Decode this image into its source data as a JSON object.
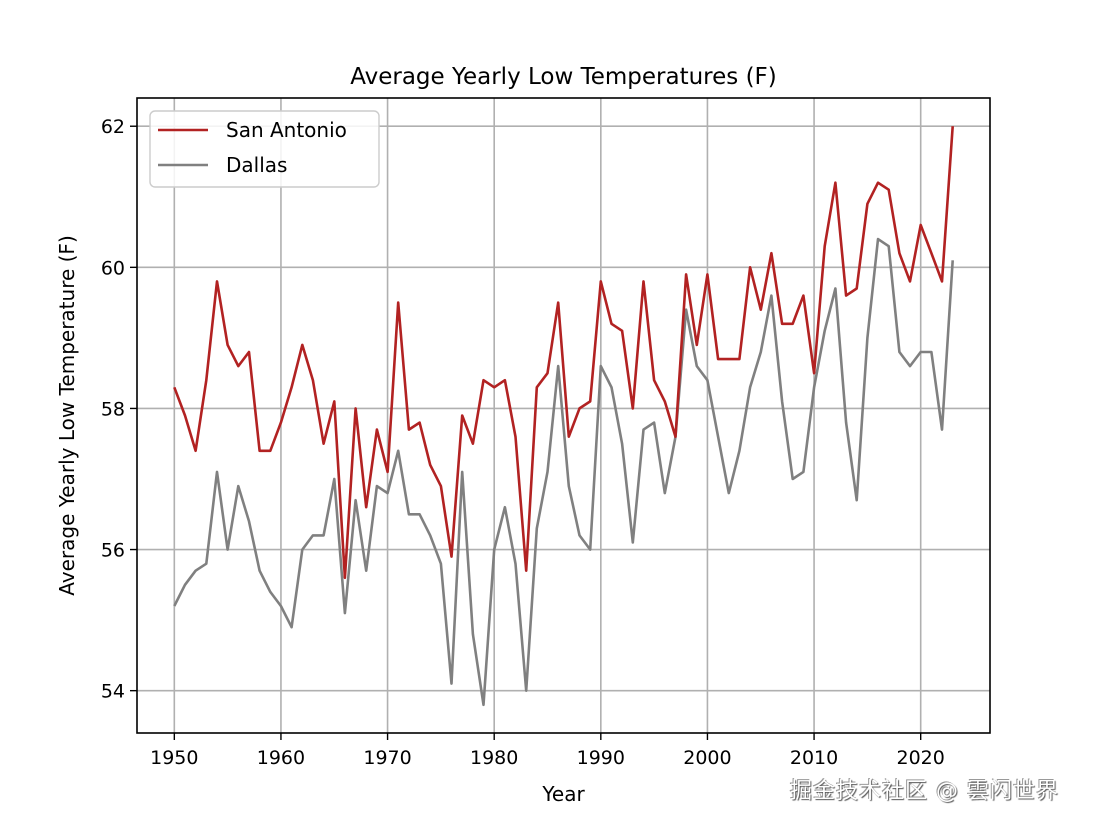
{
  "chart_data": {
    "type": "line",
    "title": "Average Yearly Low Temperatures (F)",
    "xlabel": "Year",
    "ylabel": "Average Yearly Low Temperature (F)",
    "xlim": [
      1946.5,
      2026.5
    ],
    "ylim": [
      53.4,
      62.4
    ],
    "xticks": [
      1950,
      1960,
      1970,
      1980,
      1990,
      2000,
      2010,
      2020
    ],
    "yticks": [
      54,
      56,
      58,
      60,
      62
    ],
    "grid": true,
    "legend_position": "top-left",
    "x": [
      1950,
      1951,
      1952,
      1953,
      1954,
      1955,
      1956,
      1957,
      1958,
      1959,
      1960,
      1961,
      1962,
      1963,
      1964,
      1965,
      1966,
      1967,
      1968,
      1969,
      1970,
      1971,
      1972,
      1973,
      1974,
      1975,
      1976,
      1977,
      1978,
      1979,
      1980,
      1981,
      1982,
      1983,
      1984,
      1985,
      1986,
      1987,
      1988,
      1989,
      1990,
      1991,
      1992,
      1993,
      1994,
      1995,
      1996,
      1997,
      1998,
      1999,
      2000,
      2001,
      2002,
      2003,
      2004,
      2005,
      2006,
      2007,
      2008,
      2009,
      2010,
      2011,
      2012,
      2013,
      2014,
      2015,
      2016,
      2017,
      2018,
      2019,
      2020,
      2021,
      2022,
      2023
    ],
    "series": [
      {
        "name": "San Antonio",
        "color": "#b22222",
        "values": [
          58.3,
          57.9,
          57.4,
          58.4,
          59.8,
          58.9,
          58.6,
          58.8,
          57.4,
          57.4,
          57.8,
          58.3,
          58.9,
          58.4,
          57.5,
          58.1,
          55.6,
          58.0,
          56.6,
          57.7,
          57.1,
          59.5,
          57.7,
          57.8,
          57.2,
          56.9,
          55.9,
          57.9,
          57.5,
          58.4,
          58.3,
          58.4,
          57.6,
          55.7,
          58.3,
          58.5,
          59.5,
          57.6,
          58.0,
          58.1,
          59.8,
          59.2,
          59.1,
          58.0,
          59.8,
          58.4,
          58.1,
          57.6,
          59.9,
          58.9,
          59.9,
          58.7,
          58.7,
          58.7,
          60.0,
          59.4,
          60.2,
          59.2,
          59.2,
          59.6,
          58.5,
          60.3,
          61.2,
          59.6,
          59.7,
          60.9,
          61.2,
          61.1,
          60.2,
          59.8,
          60.6,
          60.2,
          59.8,
          62.0
        ]
      },
      {
        "name": "Dallas",
        "color": "#808080",
        "values": [
          55.2,
          55.5,
          55.7,
          55.8,
          57.1,
          56.0,
          56.9,
          56.4,
          55.7,
          55.4,
          55.2,
          54.9,
          56.0,
          56.2,
          56.2,
          57.0,
          55.1,
          56.7,
          55.7,
          56.9,
          56.8,
          57.4,
          56.5,
          56.5,
          56.2,
          55.8,
          54.1,
          57.1,
          54.8,
          53.8,
          56.0,
          56.6,
          55.8,
          54.0,
          56.3,
          57.1,
          58.6,
          56.9,
          56.2,
          56.0,
          58.6,
          58.3,
          57.5,
          56.1,
          57.7,
          57.8,
          56.8,
          57.6,
          59.4,
          58.6,
          58.4,
          57.6,
          56.8,
          57.4,
          58.3,
          58.8,
          59.6,
          58.1,
          57.0,
          57.1,
          58.3,
          59.1,
          59.7,
          57.8,
          56.7,
          59.0,
          60.4,
          60.3,
          58.8,
          58.6,
          58.8,
          58.8,
          57.7,
          60.1
        ]
      }
    ]
  },
  "watermark": "掘金技术社区 @ 雲闪世界"
}
